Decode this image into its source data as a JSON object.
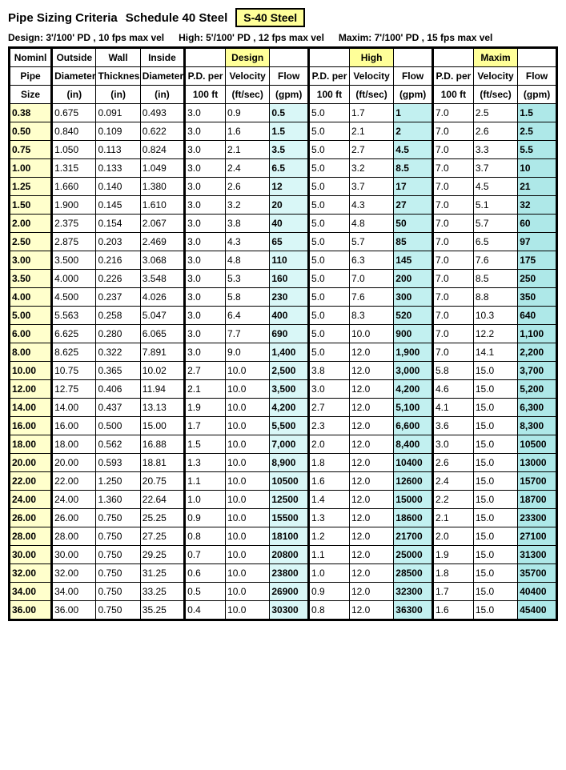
{
  "title_main": "Pipe Sizing Criteria",
  "title_sub": "Schedule 40 Steel",
  "badge": "S-40 Steel",
  "criteria": {
    "design": "Design:  3'/100' PD , 10 fps max vel",
    "high": "High: 5'/100' PD , 12 fps max vel",
    "maxim": "Maxim: 7'/100' PD , 15 fps max vel"
  },
  "header": {
    "r1": [
      "Nominl",
      "Outside",
      "Wall",
      "Inside",
      "",
      "Design",
      "",
      "",
      "High",
      "",
      "",
      "Maxim",
      ""
    ],
    "r2": [
      "Pipe",
      "Diameter",
      "Thickness",
      "Diameter",
      "P.D. per",
      "Velocity",
      "Flow",
      "P.D. per",
      "Velocity",
      "Flow",
      "P.D. per",
      "Velocity",
      "Flow"
    ],
    "r3": [
      "Size",
      "(in)",
      "(in)",
      "(in)",
      "100 ft",
      "(ft/sec)",
      "(gpm)",
      "100 ft",
      "(ft/sec)",
      "(gpm)",
      "100 ft",
      "(ft/sec)",
      "(gpm)"
    ]
  },
  "colors": {
    "badge_bg": "#ffff99",
    "nom_bg": "#ffffcc",
    "flow_d_bg": "#d9f7f7",
    "flow_h_bg": "#c2f0f0",
    "flow_m_bg": "#aee8e8",
    "border": "#000000",
    "bg": "#ffffff"
  },
  "rows": [
    [
      "0.38",
      "0.675",
      "0.091",
      "0.493",
      "3.0",
      "0.9",
      "0.5",
      "5.0",
      "1.7",
      "1",
      "7.0",
      "2.5",
      "1.5"
    ],
    [
      "0.50",
      "0.840",
      "0.109",
      "0.622",
      "3.0",
      "1.6",
      "1.5",
      "5.0",
      "2.1",
      "2",
      "7.0",
      "2.6",
      "2.5"
    ],
    [
      "0.75",
      "1.050",
      "0.113",
      "0.824",
      "3.0",
      "2.1",
      "3.5",
      "5.0",
      "2.7",
      "4.5",
      "7.0",
      "3.3",
      "5.5"
    ],
    [
      "1.00",
      "1.315",
      "0.133",
      "1.049",
      "3.0",
      "2.4",
      "6.5",
      "5.0",
      "3.2",
      "8.5",
      "7.0",
      "3.7",
      "10"
    ],
    [
      "1.25",
      "1.660",
      "0.140",
      "1.380",
      "3.0",
      "2.6",
      "12",
      "5.0",
      "3.7",
      "17",
      "7.0",
      "4.5",
      "21"
    ],
    [
      "1.50",
      "1.900",
      "0.145",
      "1.610",
      "3.0",
      "3.2",
      "20",
      "5.0",
      "4.3",
      "27",
      "7.0",
      "5.1",
      "32"
    ],
    [
      "2.00",
      "2.375",
      "0.154",
      "2.067",
      "3.0",
      "3.8",
      "40",
      "5.0",
      "4.8",
      "50",
      "7.0",
      "5.7",
      "60"
    ],
    [
      "2.50",
      "2.875",
      "0.203",
      "2.469",
      "3.0",
      "4.3",
      "65",
      "5.0",
      "5.7",
      "85",
      "7.0",
      "6.5",
      "97"
    ],
    [
      "3.00",
      "3.500",
      "0.216",
      "3.068",
      "3.0",
      "4.8",
      "110",
      "5.0",
      "6.3",
      "145",
      "7.0",
      "7.6",
      "175"
    ],
    [
      "3.50",
      "4.000",
      "0.226",
      "3.548",
      "3.0",
      "5.3",
      "160",
      "5.0",
      "7.0",
      "200",
      "7.0",
      "8.5",
      "250"
    ],
    [
      "4.00",
      "4.500",
      "0.237",
      "4.026",
      "3.0",
      "5.8",
      "230",
      "5.0",
      "7.6",
      "300",
      "7.0",
      "8.8",
      "350"
    ],
    [
      "5.00",
      "5.563",
      "0.258",
      "5.047",
      "3.0",
      "6.4",
      "400",
      "5.0",
      "8.3",
      "520",
      "7.0",
      "10.3",
      "640"
    ],
    [
      "6.00",
      "6.625",
      "0.280",
      "6.065",
      "3.0",
      "7.7",
      "690",
      "5.0",
      "10.0",
      "900",
      "7.0",
      "12.2",
      "1,100"
    ],
    [
      "8.00",
      "8.625",
      "0.322",
      "7.891",
      "3.0",
      "9.0",
      "1,400",
      "5.0",
      "12.0",
      "1,900",
      "7.0",
      "14.1",
      "2,200"
    ],
    [
      "10.00",
      "10.75",
      "0.365",
      "10.02",
      "2.7",
      "10.0",
      "2,500",
      "3.8",
      "12.0",
      "3,000",
      "5.8",
      "15.0",
      "3,700"
    ],
    [
      "12.00",
      "12.75",
      "0.406",
      "11.94",
      "2.1",
      "10.0",
      "3,500",
      "3.0",
      "12.0",
      "4,200",
      "4.6",
      "15.0",
      "5,200"
    ],
    [
      "14.00",
      "14.00",
      "0.437",
      "13.13",
      "1.9",
      "10.0",
      "4,200",
      "2.7",
      "12.0",
      "5,100",
      "4.1",
      "15.0",
      "6,300"
    ],
    [
      "16.00",
      "16.00",
      "0.500",
      "15.00",
      "1.7",
      "10.0",
      "5,500",
      "2.3",
      "12.0",
      "6,600",
      "3.6",
      "15.0",
      "8,300"
    ],
    [
      "18.00",
      "18.00",
      "0.562",
      "16.88",
      "1.5",
      "10.0",
      "7,000",
      "2.0",
      "12.0",
      "8,400",
      "3.0",
      "15.0",
      "10500"
    ],
    [
      "20.00",
      "20.00",
      "0.593",
      "18.81",
      "1.3",
      "10.0",
      "8,900",
      "1.8",
      "12.0",
      "10400",
      "2.6",
      "15.0",
      "13000"
    ],
    [
      "22.00",
      "22.00",
      "1.250",
      "20.75",
      "1.1",
      "10.0",
      "10500",
      "1.6",
      "12.0",
      "12600",
      "2.4",
      "15.0",
      "15700"
    ],
    [
      "24.00",
      "24.00",
      "1.360",
      "22.64",
      "1.0",
      "10.0",
      "12500",
      "1.4",
      "12.0",
      "15000",
      "2.2",
      "15.0",
      "18700"
    ],
    [
      "26.00",
      "26.00",
      "0.750",
      "25.25",
      "0.9",
      "10.0",
      "15500",
      "1.3",
      "12.0",
      "18600",
      "2.1",
      "15.0",
      "23300"
    ],
    [
      "28.00",
      "28.00",
      "0.750",
      "27.25",
      "0.8",
      "10.0",
      "18100",
      "1.2",
      "12.0",
      "21700",
      "2.0",
      "15.0",
      "27100"
    ],
    [
      "30.00",
      "30.00",
      "0.750",
      "29.25",
      "0.7",
      "10.0",
      "20800",
      "1.1",
      "12.0",
      "25000",
      "1.9",
      "15.0",
      "31300"
    ],
    [
      "32.00",
      "32.00",
      "0.750",
      "31.25",
      "0.6",
      "10.0",
      "23800",
      "1.0",
      "12.0",
      "28500",
      "1.8",
      "15.0",
      "35700"
    ],
    [
      "34.00",
      "34.00",
      "0.750",
      "33.25",
      "0.5",
      "10.0",
      "26900",
      "0.9",
      "12.0",
      "32300",
      "1.7",
      "15.0",
      "40400"
    ],
    [
      "36.00",
      "36.00",
      "0.750",
      "35.25",
      "0.4",
      "10.0",
      "30300",
      "0.8",
      "12.0",
      "36300",
      "1.6",
      "15.0",
      "45400"
    ]
  ]
}
